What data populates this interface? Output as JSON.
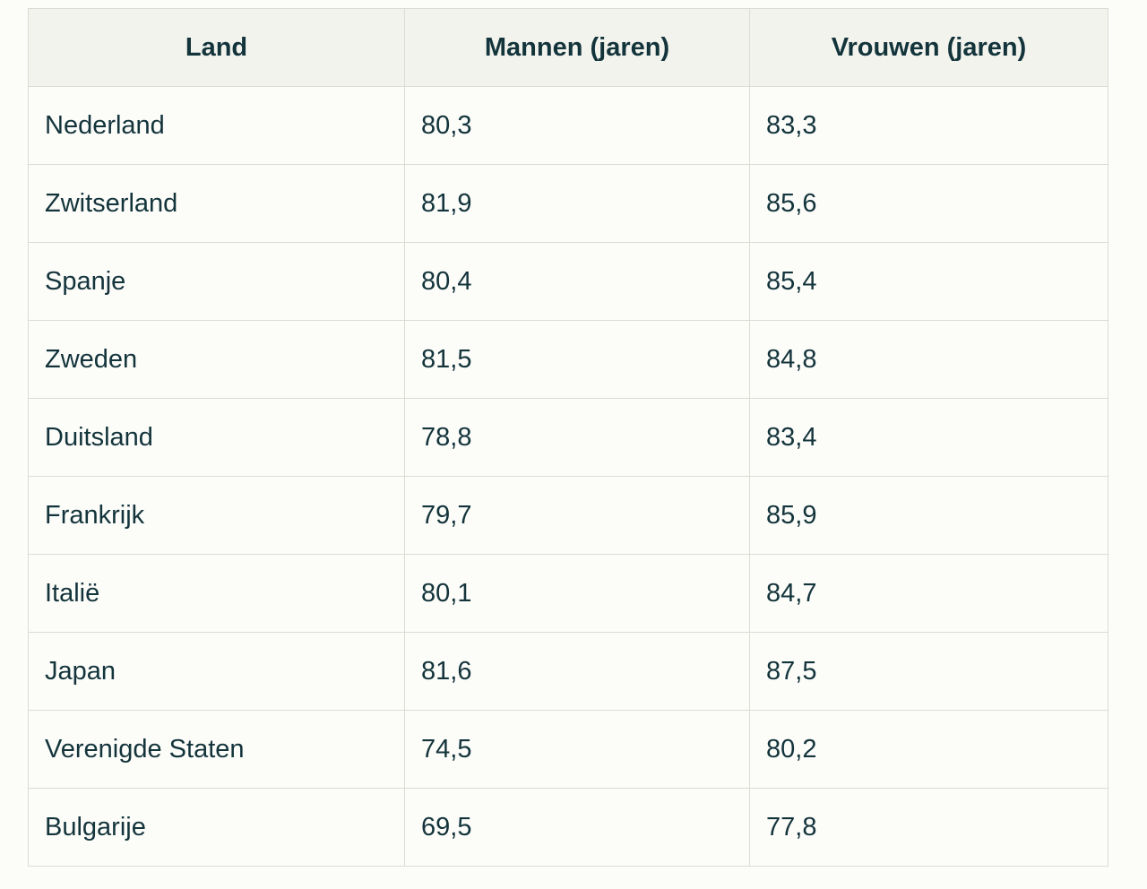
{
  "table": {
    "headers": [
      "Land",
      "Mannen (jaren)",
      "Vrouwen (jaren)"
    ],
    "rows": [
      [
        "Nederland",
        "80,3",
        "83,3"
      ],
      [
        "Zwitserland",
        "81,9",
        "85,6"
      ],
      [
        "Spanje",
        "80,4",
        "85,4"
      ],
      [
        "Zweden",
        "81,5",
        "84,8"
      ],
      [
        "Duitsland",
        "78,8",
        "83,4"
      ],
      [
        "Frankrijk",
        "79,7",
        "85,9"
      ],
      [
        "Italië",
        "80,1",
        "84,7"
      ],
      [
        "Japan",
        "81,6",
        "87,5"
      ],
      [
        "Verenigde Staten",
        "74,5",
        "80,2"
      ],
      [
        "Bulgarije",
        "69,5",
        "77,8"
      ]
    ]
  },
  "colors": {
    "text": "#13343b",
    "header_bg": "#f3f3ee",
    "page_bg": "#fcfcf9",
    "border": "#dcdcd6"
  }
}
